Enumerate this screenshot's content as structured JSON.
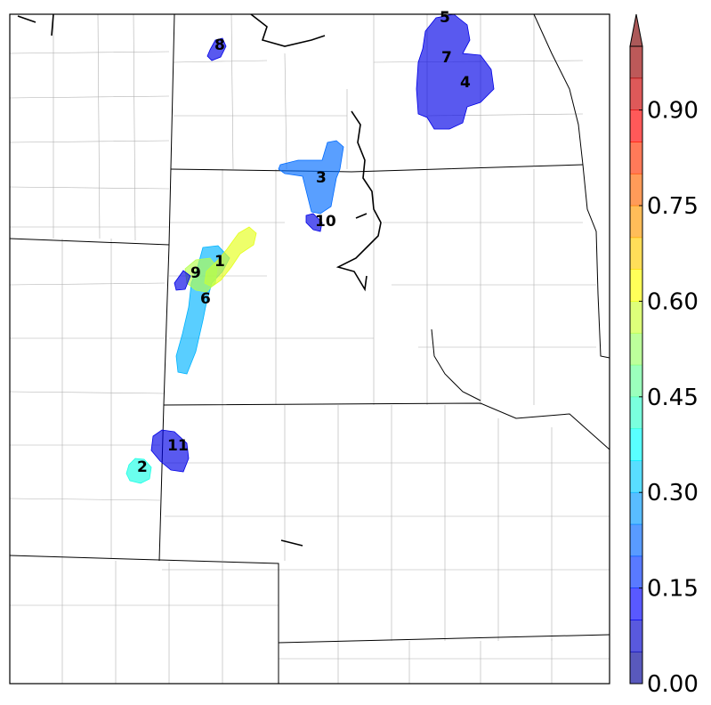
{
  "map": {
    "regions": [
      {
        "id": "1",
        "label": "1",
        "value": 0.6
      },
      {
        "id": "2",
        "label": "2",
        "value": 0.4
      },
      {
        "id": "3",
        "label": "3",
        "value": 0.23
      },
      {
        "id": "4",
        "label": "4",
        "value": 0.12
      },
      {
        "id": "5",
        "label": "5",
        "value": 0.1
      },
      {
        "id": "6",
        "label": "6",
        "value": 0.3
      },
      {
        "id": "7",
        "label": "7",
        "value": 0.08
      },
      {
        "id": "8",
        "label": "8",
        "value": 0.1
      },
      {
        "id": "9",
        "label": "9",
        "value": 0.55
      },
      {
        "id": "10",
        "label": "10",
        "value": 0.1
      },
      {
        "id": "11",
        "label": "11",
        "value": 0.1
      }
    ]
  },
  "colorbar": {
    "min": 0.0,
    "max": 1.0,
    "step": 0.05,
    "extend": "max",
    "ticks": [
      0.0,
      0.15,
      0.3,
      0.45,
      0.6,
      0.75,
      0.9
    ],
    "tick_labels": [
      "0.00",
      "0.15",
      "0.30",
      "0.45",
      "0.60",
      "0.75",
      "0.90"
    ],
    "colormap": "jet",
    "alpha": 0.65
  }
}
